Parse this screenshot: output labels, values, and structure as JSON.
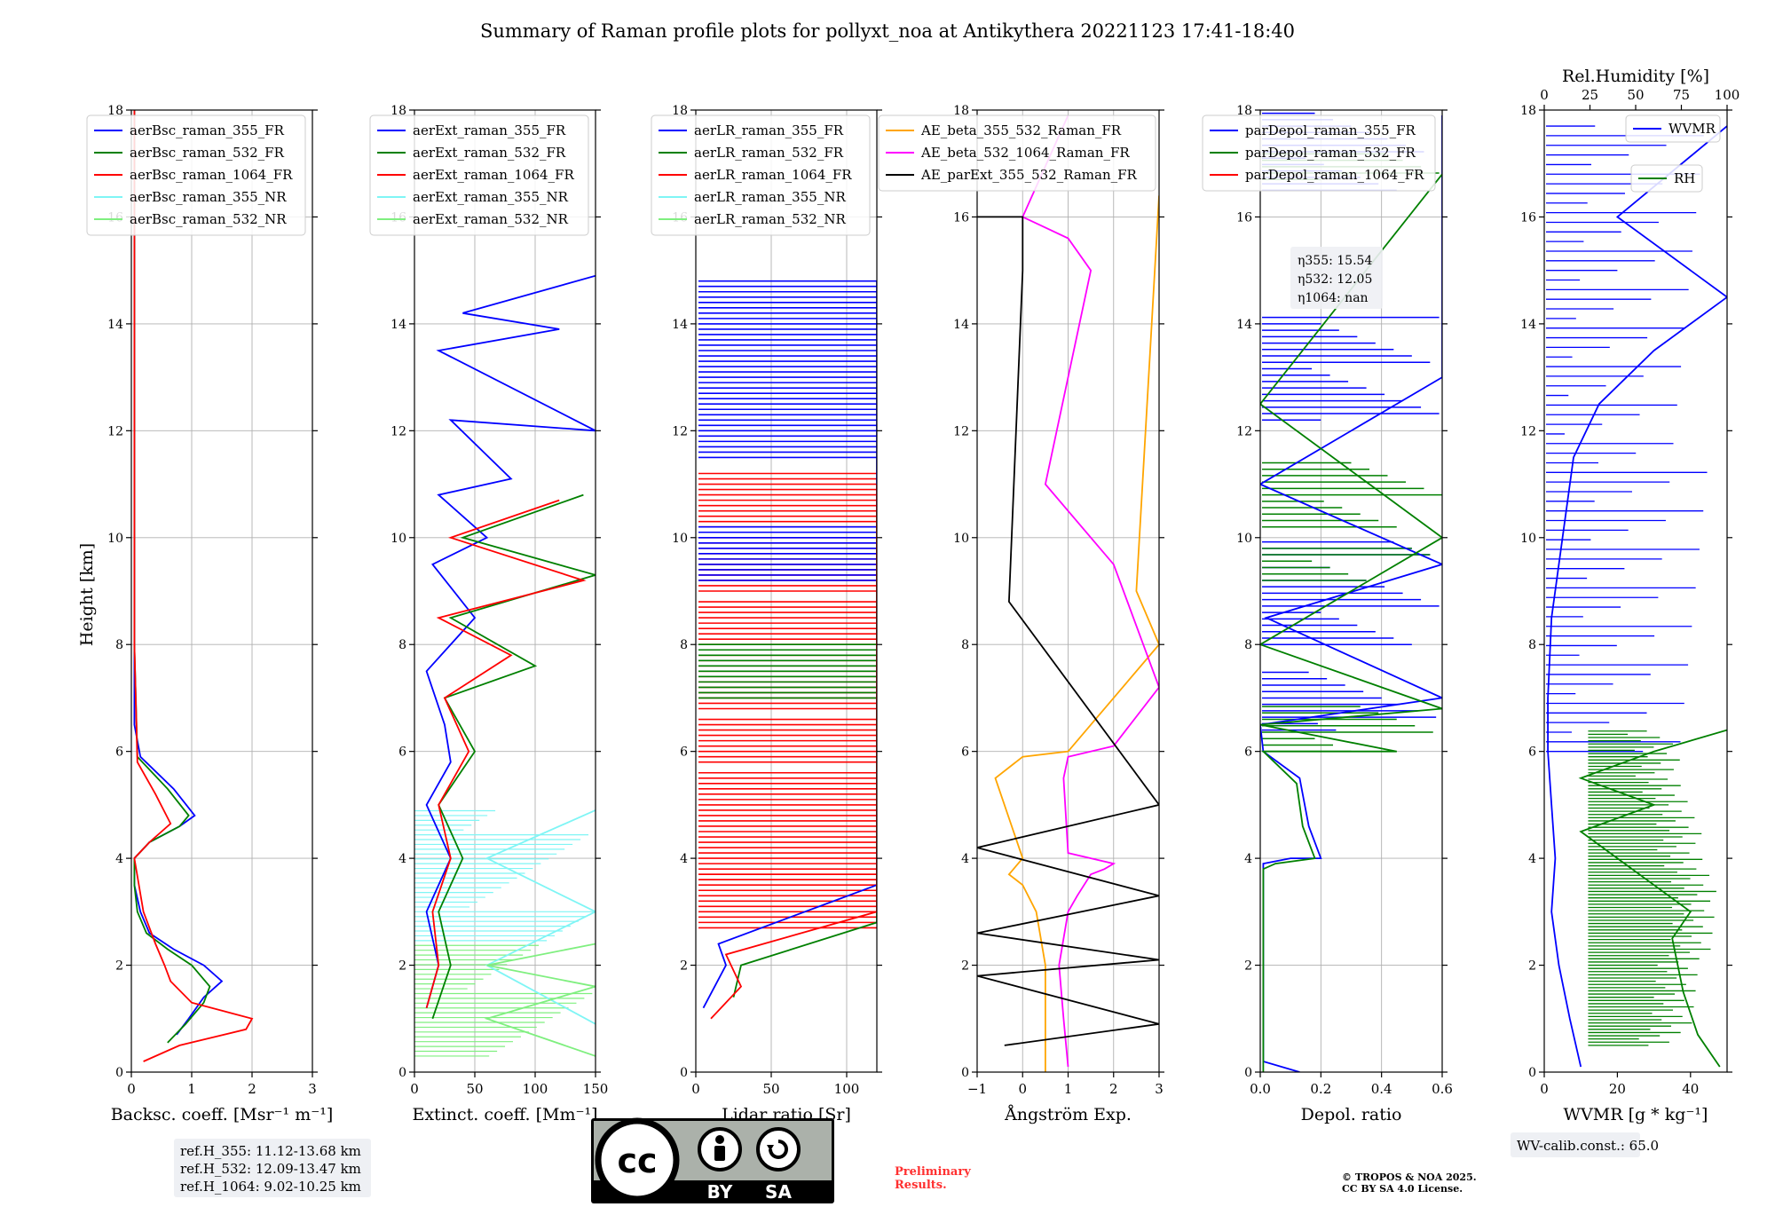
{
  "title": "Summary of Raman profile plots for pollyxt_noa at Antikythera 20221123 17:41-18:40",
  "ylabel": "Height [km]",
  "y_ticks": [
    "0",
    "2",
    "4",
    "6",
    "8",
    "10",
    "12",
    "14",
    "16",
    "18"
  ],
  "colors": {
    "c355": "#0000ff",
    "c532": "#008000",
    "c1064": "#ff0000",
    "c355nr": "#7ff5f5",
    "c532nr": "#7fef7f",
    "orange": "#ffa500",
    "magenta": "#ff00ff",
    "black": "#000000"
  },
  "panels": [
    {
      "key": "bsc",
      "xlabel": "Backsc. coeff. [Msr⁻¹ m⁻¹]",
      "x_ticks": [
        "0",
        "1",
        "2",
        "3"
      ],
      "legend": [
        "aerBsc_raman_355_FR",
        "aerBsc_raman_532_FR",
        "aerBsc_raman_1064_FR",
        "aerBsc_raman_355_NR",
        "aerBsc_raman_532_NR"
      ]
    },
    {
      "key": "ext",
      "xlabel": "Extinct. coeff. [Mm⁻¹]",
      "x_ticks": [
        "0",
        "50",
        "100",
        "150"
      ],
      "legend": [
        "aerExt_raman_355_FR",
        "aerExt_raman_532_FR",
        "aerExt_raman_1064_FR",
        "aerExt_raman_355_NR",
        "aerExt_raman_532_NR"
      ]
    },
    {
      "key": "lr",
      "xlabel": "Lidar ratio [Sr]",
      "x_ticks": [
        "0",
        "50",
        "100"
      ],
      "legend": [
        "aerLR_raman_355_FR",
        "aerLR_raman_532_FR",
        "aerLR_raman_1064_FR",
        "aerLR_raman_355_NR",
        "aerLR_raman_532_NR"
      ]
    },
    {
      "key": "ae",
      "xlabel": "Ångström Exp.",
      "x_ticks": [
        "−1",
        "0",
        "1",
        "2",
        "3"
      ],
      "legend": [
        "AE_beta_355_532_Raman_FR",
        "AE_beta_532_1064_Raman_FR",
        "AE_parExt_355_532_Raman_FR"
      ]
    },
    {
      "key": "dep",
      "xlabel": "Depol. ratio",
      "x_ticks": [
        "0.0",
        "0.2",
        "0.4",
        "0.6"
      ],
      "legend": [
        "parDepol_raman_355_FR",
        "parDepol_raman_532_FR",
        "parDepol_raman_1064_FR"
      ]
    },
    {
      "key": "wv",
      "xlabel": "WVMR [g * kg⁻¹]",
      "x_ticks": [
        "0",
        "20",
        "40"
      ],
      "top_label": "Rel.Humidity [%]",
      "top_ticks": [
        "0",
        "25",
        "50",
        "75",
        "100"
      ],
      "legend": [
        "WVMR",
        "RH"
      ]
    }
  ],
  "eta": {
    "l355": "η355: 15.54",
    "l532": "η532: 12.05",
    "l1064": "η1064: nan"
  },
  "ref_heights": [
    "ref.H_355: 11.12-13.68 km",
    "ref.H_532: 12.09-13.47 km",
    "ref.H_1064: 9.02-10.25 km"
  ],
  "wv_calib": "WV-calib.const.: 65.0",
  "license_badge": {
    "cc": "cc",
    "by": "BY",
    "sa": "SA"
  },
  "preliminary": [
    "Preliminary",
    "Results."
  ],
  "copyright": [
    "© TROPOS & NOA 2025.",
    "CC BY SA 4.0 License."
  ],
  "chart_data": [
    {
      "type": "line",
      "title": "",
      "xlabel": "Backsc. coeff. [Msr⁻¹ m⁻¹]",
      "ylabel": "Height [km]",
      "xlim": [
        0,
        3
      ],
      "ylim": [
        0,
        18
      ],
      "grid": true,
      "legend_position": "top-left",
      "series": [
        {
          "name": "aerBsc_raman_355_FR",
          "x": [
            0.75,
            0.95,
            1.2,
            1.5,
            1.2,
            0.7,
            0.3,
            0.15,
            0.05,
            0.05,
            0.3,
            0.8,
            1.05,
            0.7,
            0.15,
            0.05,
            0.05,
            0.05,
            0.05,
            0.05
          ],
          "y": [
            0.7,
            1.0,
            1.4,
            1.7,
            2.0,
            2.3,
            2.6,
            3.0,
            3.5,
            4.0,
            4.3,
            4.6,
            4.8,
            5.3,
            5.9,
            6.5,
            8.0,
            10.0,
            14.0,
            18.0
          ]
        },
        {
          "name": "aerBsc_raman_532_FR",
          "x": [
            0.6,
            0.9,
            1.2,
            1.3,
            1.0,
            0.6,
            0.25,
            0.1,
            0.05,
            0.05,
            0.3,
            0.8,
            0.95,
            0.6,
            0.1,
            0.05,
            0.05
          ],
          "y": [
            0.55,
            0.9,
            1.3,
            1.6,
            2.0,
            2.3,
            2.6,
            3.0,
            3.5,
            4.0,
            4.3,
            4.6,
            4.8,
            5.3,
            5.9,
            8.0,
            18.0
          ]
        },
        {
          "name": "aerBsc_raman_1064_FR",
          "x": [
            0.2,
            0.8,
            1.9,
            2.0,
            1.0,
            0.65,
            0.55,
            0.4,
            0.2,
            0.05,
            0.3,
            0.65,
            0.4,
            0.1,
            0.05,
            0.05
          ],
          "y": [
            0.2,
            0.5,
            0.8,
            1.0,
            1.3,
            1.7,
            2.0,
            2.4,
            3.0,
            4.0,
            4.3,
            4.65,
            5.2,
            5.8,
            8.0,
            18.0
          ]
        }
      ]
    },
    {
      "type": "line",
      "title": "",
      "xlabel": "Extinct. coeff. [Mm⁻¹]",
      "ylabel": "Height [km]",
      "xlim": [
        0,
        150
      ],
      "ylim": [
        0,
        18
      ],
      "grid": true,
      "legend_position": "top-left",
      "series": [
        {
          "name": "aerExt_raman_355_FR",
          "x": [
            10,
            20,
            10,
            30,
            10,
            30,
            25,
            10,
            50,
            15,
            60,
            20,
            80,
            30,
            150,
            20,
            120,
            40,
            150
          ],
          "y": [
            1.2,
            2.0,
            3.0,
            4.0,
            5.0,
            5.8,
            6.5,
            7.5,
            8.5,
            9.5,
            10.0,
            10.8,
            11.1,
            12.2,
            12.0,
            13.5,
            13.9,
            14.2,
            14.9
          ]
        },
        {
          "name": "aerExt_raman_532_FR",
          "x": [
            15,
            30,
            20,
            40,
            20,
            50,
            25,
            100,
            30,
            150,
            40,
            140
          ],
          "y": [
            1.0,
            2.0,
            3.0,
            4.0,
            5.0,
            6.0,
            7.0,
            7.6,
            8.5,
            9.3,
            10.0,
            10.8
          ]
        },
        {
          "name": "aerExt_raman_1064_FR",
          "x": [
            10,
            20,
            15,
            30,
            20,
            45,
            25,
            80,
            20,
            140,
            30,
            120
          ],
          "y": [
            1.2,
            2.0,
            3.0,
            4.0,
            5.0,
            6.0,
            7.0,
            7.8,
            8.5,
            9.2,
            10.0,
            10.7
          ]
        },
        {
          "name": "aerExt_raman_355_NR",
          "x": [
            150,
            60,
            150,
            60,
            150
          ],
          "y": [
            0.9,
            2.0,
            3.0,
            4.0,
            4.9
          ]
        },
        {
          "name": "aerExt_raman_532_NR",
          "x": [
            150,
            60,
            150,
            60,
            150
          ],
          "y": [
            0.3,
            1.0,
            1.6,
            2.0,
            2.4
          ]
        }
      ]
    },
    {
      "type": "line",
      "title": "",
      "xlabel": "Lidar ratio [Sr]",
      "ylabel": "Height [km]",
      "xlim": [
        0,
        120
      ],
      "ylim": [
        0,
        18
      ],
      "grid": true,
      "legend_position": "top-left",
      "series": [
        {
          "name": "aerLR_raman_355_FR",
          "x": [
            5,
            20,
            15,
            120,
            120,
            120,
            120,
            120
          ],
          "y": [
            1.2,
            2.0,
            2.4,
            3.5,
            5.5,
            10.0,
            12.0,
            14.8
          ]
        },
        {
          "name": "aerLR_raman_532_FR",
          "x": [
            25,
            30,
            120,
            120,
            120,
            120
          ],
          "y": [
            1.4,
            2.0,
            2.8,
            5.0,
            8.0,
            10.5
          ]
        },
        {
          "name": "aerLR_raman_1064_FR",
          "x": [
            10,
            30,
            20,
            120,
            120,
            120,
            120
          ],
          "y": [
            1.0,
            1.6,
            2.2,
            3.0,
            5.5,
            8.5,
            11.0
          ]
        }
      ]
    },
    {
      "type": "line",
      "title": "",
      "xlabel": "Ångström Exp.",
      "ylabel": "Height [km]",
      "xlim": [
        -1,
        3
      ],
      "ylim": [
        0,
        18
      ],
      "grid": true,
      "legend_position": "top",
      "series": [
        {
          "name": "AE_beta_355_532_Raman_FR",
          "x": [
            0.5,
            0.5,
            0.5,
            0.3,
            0.0,
            -0.3,
            0.0,
            -0.6,
            0.0,
            1.0,
            3.0,
            2.5,
            3.0
          ],
          "y": [
            0.0,
            1.0,
            2.0,
            3.0,
            3.5,
            3.7,
            4.0,
            5.5,
            5.9,
            6.0,
            8.0,
            9.0,
            16.4
          ]
        },
        {
          "name": "AE_beta_532_1064_Raman_FR",
          "x": [
            1.0,
            0.9,
            0.8,
            1.0,
            1.2,
            1.5,
            1.8,
            2.0,
            1.0,
            0.9,
            1.0,
            2.0,
            3.0,
            2.0,
            0.5,
            1.0,
            1.5,
            1.0,
            0.0,
            1.0
          ],
          "y": [
            0.1,
            1.0,
            2.0,
            3.0,
            3.3,
            3.7,
            3.8,
            3.9,
            4.1,
            5.5,
            5.9,
            6.1,
            7.2,
            9.5,
            11.0,
            13.0,
            15.0,
            15.6,
            16.0,
            17.9
          ]
        },
        {
          "name": "AE_parExt_355_532_Raman_FR",
          "x": [
            -0.4,
            3.0,
            -1.0,
            3.0,
            -1.0,
            3.0,
            -1.0,
            3.0,
            -0.3,
            0.0,
            0.0,
            -1.0
          ],
          "y": [
            0.5,
            0.9,
            1.8,
            2.1,
            2.6,
            3.3,
            4.2,
            5.0,
            8.8,
            15.0,
            16.0,
            16.0
          ]
        }
      ]
    },
    {
      "type": "line",
      "title": "",
      "xlabel": "Depol. ratio",
      "ylabel": "Height [km]",
      "xlim": [
        0,
        0.6
      ],
      "ylim": [
        0,
        18
      ],
      "grid": true,
      "legend_position": "top-left",
      "series": [
        {
          "name": "parDepol_raman_355_FR",
          "x": [
            0.13,
            0.01,
            0.01,
            0.1,
            0.2,
            0.16,
            0.13,
            0.01,
            0.0,
            0.6,
            0.02,
            0.6,
            0.0,
            0.6,
            0.6
          ],
          "y": [
            0.0,
            0.2,
            3.9,
            4.0,
            4.0,
            4.6,
            5.5,
            6.0,
            6.5,
            7.0,
            8.5,
            9.5,
            11.0,
            13.0,
            17.9
          ]
        },
        {
          "name": "parDepol_raman_532_FR",
          "x": [
            0.01,
            0.01,
            0.05,
            0.18,
            0.14,
            0.12,
            0.01,
            0.45,
            0.0,
            0.6,
            0.0,
            0.6,
            0.0,
            0.6
          ],
          "y": [
            0.0,
            3.8,
            3.9,
            4.0,
            4.6,
            5.4,
            6.0,
            6.0,
            6.5,
            6.8,
            8.0,
            10.0,
            12.5,
            16.8
          ]
        }
      ]
    },
    {
      "type": "line",
      "title": "",
      "xlabel": "WVMR [g * kg⁻¹]",
      "ylabel": "Height [km]",
      "xlim": [
        0,
        50
      ],
      "ylim": [
        0,
        18
      ],
      "x2label": "Rel.Humidity [%]",
      "x2lim": [
        0,
        100
      ],
      "grid": false,
      "legend_position": "top-right",
      "series": [
        {
          "name": "WVMR",
          "x": [
            10,
            7,
            4,
            2,
            3,
            2,
            1,
            1,
            2,
            5,
            8,
            15,
            30,
            50,
            20,
            50
          ],
          "y": [
            0.1,
            1.0,
            2.0,
            3.0,
            4.0,
            5.0,
            6.0,
            7.0,
            8.5,
            10.0,
            11.5,
            12.5,
            13.5,
            14.5,
            16.0,
            17.7
          ]
        },
        {
          "name": "RH",
          "x": [
            48,
            42,
            38,
            35,
            40,
            30,
            20,
            10,
            30,
            10,
            30,
            50
          ],
          "y": [
            0.1,
            0.7,
            1.5,
            2.5,
            3.0,
            3.5,
            4.0,
            4.5,
            5.0,
            5.5,
            6.0,
            6.4
          ]
        }
      ]
    }
  ]
}
